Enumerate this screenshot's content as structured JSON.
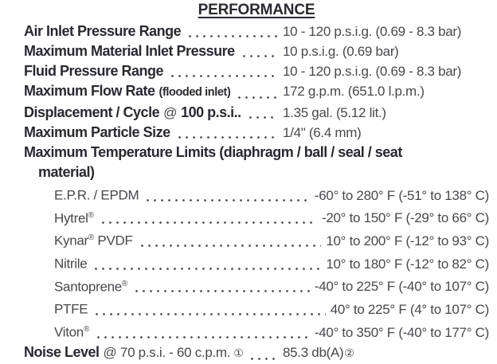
{
  "title": "PERFORMANCE",
  "specs": [
    {
      "label": "Air Inlet Pressure Range",
      "value": "10 - 120 p.s.i.g. (0.69 - 8.3 bar)"
    },
    {
      "label": "Maximum Material Inlet Pressure",
      "value": "10 p.s.i.g. (0.69 bar)"
    },
    {
      "label": "Fluid Pressure Range",
      "value": "10 - 120 p.s.i.g. (0.69 - 8.3 bar)"
    },
    {
      "label": "Maximum Flow Rate",
      "note": "(flooded inlet)",
      "value": "172 g.p.m. (651.0 l.p.m.)"
    },
    {
      "label": "Displacement / Cycle",
      "mid": "@",
      "label2": "100 p.s.i..",
      "value": "1.35 gal. (5.12 lit.)"
    },
    {
      "label": "Maximum Particle Size",
      "value": "1/4\" (6.4 mm)"
    }
  ],
  "temp_section": {
    "heading_line1": "Maximum Temperature Limits (diaphragm / ball / seal / seat",
    "heading_line2": "material)",
    "rows": [
      {
        "name": "E.P.R. / EPDM",
        "reg": "",
        "suffix": "",
        "value": "-60° to 280° F (-51° to 138° C)"
      },
      {
        "name": "Hytrel",
        "reg": "®",
        "suffix": "",
        "value": "-20° to 150° F (-29° to 66° C)"
      },
      {
        "name": "Kynar",
        "reg": "®",
        "suffix": " PVDF",
        "value": "10° to 200° F (-12° to 93° C)"
      },
      {
        "name": "Nitrile",
        "reg": "",
        "suffix": "",
        "value": "10° to 180° F (-12° to 82° C)"
      },
      {
        "name": "Santoprene",
        "reg": "®",
        "suffix": "",
        "value": "-40° to 225° F (-40° to 107° C)"
      },
      {
        "name": "PTFE",
        "reg": "",
        "suffix": "",
        "value": "40° to 225° F (4° to 107° C)"
      },
      {
        "name": "Viton",
        "reg": "®",
        "suffix": "",
        "value": "-40° to 350° F (-40° to 177° C)"
      }
    ]
  },
  "noise": {
    "label": "Noise Level",
    "rest": "@ 70 p.s.i. - 60 c.p.m.",
    "footnote1": "①",
    "value": "85.3 db(A)",
    "footnote2": "②"
  }
}
